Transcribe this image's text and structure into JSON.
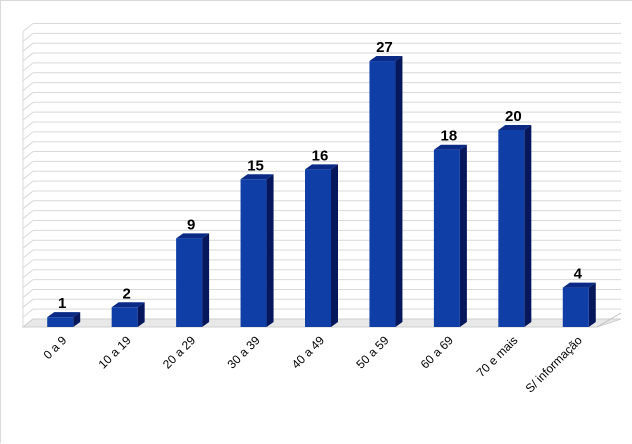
{
  "chart_data": {
    "type": "bar",
    "categories": [
      "0 a 9",
      "10 a 19",
      "20 a 29",
      "30 a 39",
      "40 a 49",
      "50 a 59",
      "60 a 69",
      "70 e mais",
      "S/ informação"
    ],
    "values": [
      1,
      2,
      9,
      15,
      16,
      27,
      18,
      20,
      4
    ],
    "title": "",
    "xlabel": "",
    "ylabel": "",
    "ylim": [
      0,
      30
    ],
    "grid": true,
    "legend": "none",
    "style": "3d-columns",
    "colors": {
      "bar_front": "#0f3fa6",
      "bar_side": "#06175c",
      "bar_top": "#0a2a86",
      "grid": "#d9d9d9",
      "floor": "#e8e8e8"
    }
  }
}
